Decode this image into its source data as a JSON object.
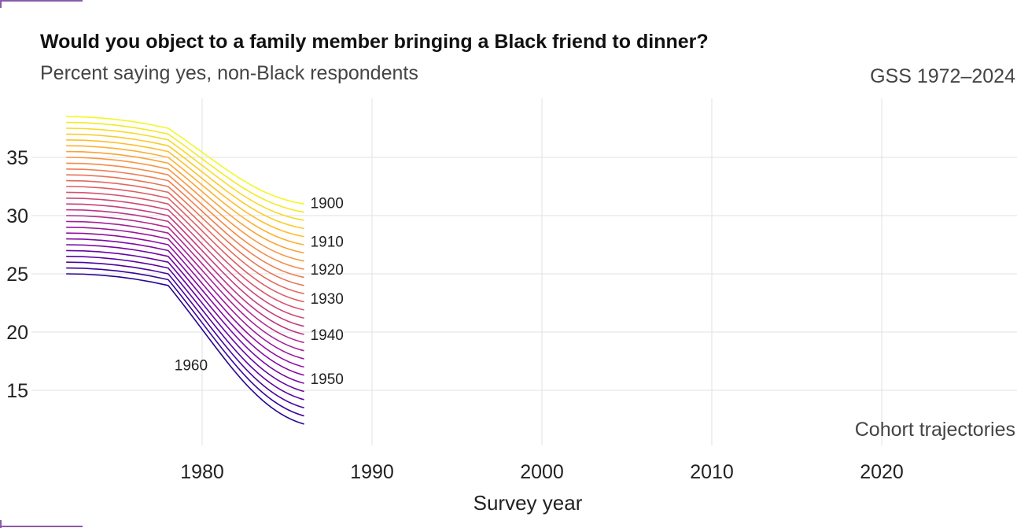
{
  "chart_data": {
    "type": "line",
    "title": "Would you object to a family member bringing a Black friend to dinner?",
    "subtitle": "Percent saying yes, non-Black respondents",
    "source": "GSS 1972–2024",
    "annotation": "Cohort trajectories",
    "xlabel": "Survey year",
    "ylabel": "",
    "xlim": [
      1971,
      2028
    ],
    "ylim": [
      11,
      39
    ],
    "x_ticks": [
      1980,
      1990,
      2000,
      2010,
      2020
    ],
    "y_ticks": [
      15,
      20,
      25,
      30,
      35
    ],
    "grid": true,
    "legend": "none",
    "colorscale": "plasma",
    "cohort_labels": [
      "1900",
      "1910",
      "1920",
      "1930",
      "1940",
      "1950",
      "1960"
    ],
    "cohort_label_values": [
      {
        "label": "1900",
        "x": 1986,
        "y": 31.1
      },
      {
        "label": "1910",
        "x": 1986,
        "y": 27.8
      },
      {
        "label": "1920",
        "x": 1986,
        "y": 25.4
      },
      {
        "label": "1930",
        "x": 1986,
        "y": 22.9
      },
      {
        "label": "1940",
        "x": 1986,
        "y": 19.8
      },
      {
        "label": "1950",
        "x": 1986,
        "y": 16.0
      },
      {
        "label": "1960",
        "x": 1978,
        "y": 17.2
      }
    ],
    "series": [
      {
        "x": [
          1972,
          1978,
          1986
        ],
        "y": [
          38.5,
          37.5,
          31.0
        ]
      },
      {
        "x": [
          1972,
          1978,
          1986
        ],
        "y": [
          38.0,
          37.0,
          30.3
        ]
      },
      {
        "x": [
          1972,
          1978,
          1986
        ],
        "y": [
          37.5,
          36.5,
          29.6
        ]
      },
      {
        "x": [
          1972,
          1978,
          1986
        ],
        "y": [
          37.0,
          36.0,
          28.9
        ]
      },
      {
        "x": [
          1972,
          1978,
          1986
        ],
        "y": [
          36.5,
          35.5,
          28.2
        ]
      },
      {
        "x": [
          1972,
          1978,
          1986
        ],
        "y": [
          36.0,
          35.0,
          27.5
        ]
      },
      {
        "x": [
          1972,
          1978,
          1986
        ],
        "y": [
          35.5,
          34.5,
          26.8
        ]
      },
      {
        "x": [
          1972,
          1978,
          1986
        ],
        "y": [
          35.0,
          34.0,
          26.1
        ]
      },
      {
        "x": [
          1972,
          1978,
          1986
        ],
        "y": [
          34.5,
          33.5,
          25.4
        ]
      },
      {
        "x": [
          1972,
          1978,
          1986
        ],
        "y": [
          34.0,
          33.0,
          24.7
        ]
      },
      {
        "x": [
          1972,
          1978,
          1986
        ],
        "y": [
          33.5,
          32.5,
          24.0
        ]
      },
      {
        "x": [
          1972,
          1978,
          1986
        ],
        "y": [
          33.0,
          32.0,
          23.3
        ]
      },
      {
        "x": [
          1972,
          1978,
          1986
        ],
        "y": [
          32.5,
          31.5,
          22.6
        ]
      },
      {
        "x": [
          1972,
          1978,
          1986
        ],
        "y": [
          32.0,
          31.0,
          21.9
        ]
      },
      {
        "x": [
          1972,
          1978,
          1986
        ],
        "y": [
          31.5,
          30.5,
          21.2
        ]
      },
      {
        "x": [
          1972,
          1978,
          1986
        ],
        "y": [
          31.0,
          30.0,
          20.5
        ]
      },
      {
        "x": [
          1972,
          1978,
          1986
        ],
        "y": [
          30.5,
          29.5,
          19.8
        ]
      },
      {
        "x": [
          1972,
          1978,
          1986
        ],
        "y": [
          30.0,
          29.0,
          19.1
        ]
      },
      {
        "x": [
          1972,
          1978,
          1986
        ],
        "y": [
          29.5,
          28.5,
          18.4
        ]
      },
      {
        "x": [
          1972,
          1978,
          1986
        ],
        "y": [
          29.0,
          28.0,
          17.7
        ]
      },
      {
        "x": [
          1972,
          1978,
          1986
        ],
        "y": [
          28.5,
          27.5,
          17.0
        ]
      },
      {
        "x": [
          1972,
          1978,
          1986
        ],
        "y": [
          28.0,
          27.0,
          16.3
        ]
      },
      {
        "x": [
          1972,
          1978,
          1986
        ],
        "y": [
          27.5,
          26.5,
          15.6
        ]
      },
      {
        "x": [
          1972,
          1978,
          1986
        ],
        "y": [
          27.0,
          26.0,
          14.9
        ]
      },
      {
        "x": [
          1972,
          1978,
          1986
        ],
        "y": [
          26.5,
          25.5,
          14.2
        ]
      },
      {
        "x": [
          1972,
          1978,
          1986
        ],
        "y": [
          26.0,
          25.0,
          13.5
        ]
      },
      {
        "x": [
          1972,
          1978,
          1986
        ],
        "y": [
          25.5,
          24.5,
          12.8
        ]
      },
      {
        "x": [
          1972,
          1978,
          1986
        ],
        "y": [
          25.0,
          24.0,
          12.1
        ]
      }
    ]
  }
}
